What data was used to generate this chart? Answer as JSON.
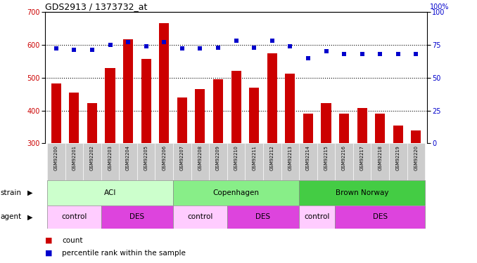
{
  "title": "GDS2913 / 1373732_at",
  "samples": [
    "GSM92200",
    "GSM92201",
    "GSM92202",
    "GSM92203",
    "GSM92204",
    "GSM92205",
    "GSM92206",
    "GSM92207",
    "GSM92208",
    "GSM92209",
    "GSM92210",
    "GSM92211",
    "GSM92212",
    "GSM92213",
    "GSM92214",
    "GSM92215",
    "GSM92216",
    "GSM92217",
    "GSM92218",
    "GSM92219",
    "GSM92220"
  ],
  "counts": [
    482,
    455,
    422,
    530,
    617,
    557,
    665,
    440,
    465,
    495,
    520,
    470,
    574,
    513,
    390,
    422,
    390,
    407,
    390,
    355,
    340
  ],
  "percentiles": [
    72,
    71,
    71,
    75,
    77,
    74,
    77,
    72,
    72,
    73,
    78,
    73,
    78,
    74,
    65,
    70,
    68,
    68,
    68,
    68,
    68
  ],
  "ylim_left": [
    300,
    700
  ],
  "ylim_right": [
    0,
    100
  ],
  "yticks_left": [
    300,
    400,
    500,
    600,
    700
  ],
  "yticks_right": [
    0,
    25,
    50,
    75,
    100
  ],
  "bar_color": "#cc0000",
  "dot_color": "#0000cc",
  "strain_info": [
    {
      "label": "ACI",
      "start": 0,
      "end": 6,
      "color": "#ccffcc"
    },
    {
      "label": "Copenhagen",
      "start": 7,
      "end": 13,
      "color": "#88ee88"
    },
    {
      "label": "Brown Norway",
      "start": 14,
      "end": 20,
      "color": "#44cc44"
    }
  ],
  "agent_info": [
    {
      "label": "control",
      "start": 0,
      "end": 2,
      "color": "#ffccff"
    },
    {
      "label": "DES",
      "start": 3,
      "end": 6,
      "color": "#dd44dd"
    },
    {
      "label": "control",
      "start": 7,
      "end": 9,
      "color": "#ffccff"
    },
    {
      "label": "DES",
      "start": 10,
      "end": 13,
      "color": "#dd44dd"
    },
    {
      "label": "control",
      "start": 14,
      "end": 15,
      "color": "#ffccff"
    },
    {
      "label": "DES",
      "start": 16,
      "end": 20,
      "color": "#dd44dd"
    }
  ],
  "grid_dotted_at": [
    400,
    500,
    600
  ],
  "xticklabel_bg": "#cccccc",
  "left_tick_color": "#cc0000",
  "right_tick_color": "#0000cc"
}
